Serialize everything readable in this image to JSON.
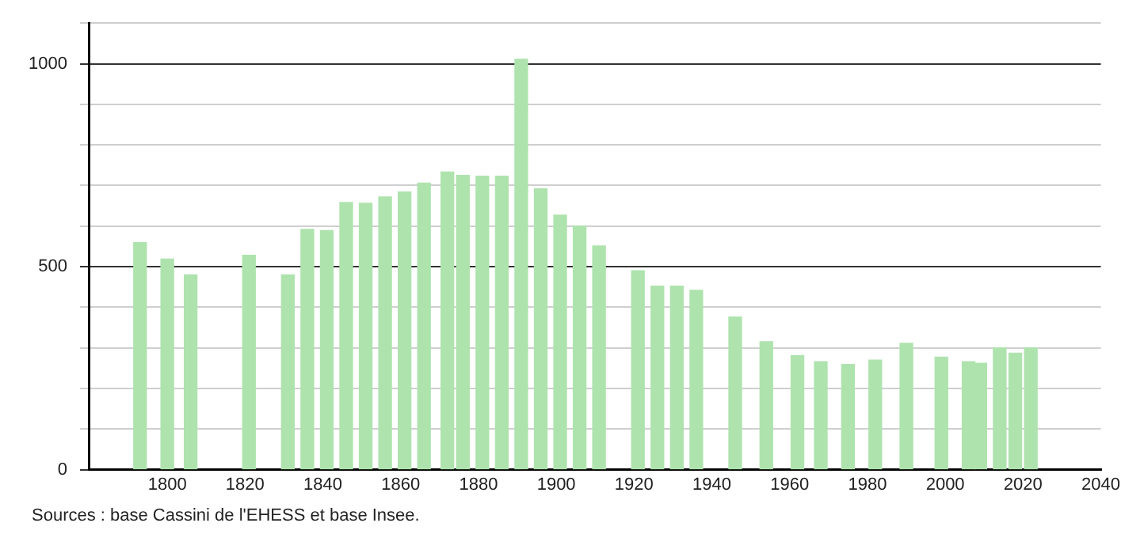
{
  "chart_data": {
    "type": "bar",
    "x": [
      1793,
      1800,
      1806,
      1821,
      1831,
      1836,
      1841,
      1846,
      1851,
      1856,
      1861,
      1866,
      1872,
      1876,
      1881,
      1886,
      1891,
      1896,
      1901,
      1906,
      1911,
      1921,
      1926,
      1931,
      1936,
      1946,
      1954,
      1962,
      1968,
      1975,
      1982,
      1990,
      1999,
      2006,
      2009,
      2014,
      2018,
      2022
    ],
    "values": [
      559,
      519,
      480,
      528,
      480,
      592,
      589,
      658,
      656,
      672,
      684,
      706,
      733,
      725,
      723,
      723,
      1011,
      692,
      627,
      600,
      551,
      490,
      452,
      452,
      442,
      376,
      315,
      281,
      266,
      259,
      270,
      311,
      277,
      266,
      262,
      300,
      287,
      300
    ],
    "color": "#aee3ae",
    "xlim": [
      1780,
      2040
    ],
    "xticks": [
      1800,
      1820,
      1840,
      1860,
      1880,
      1900,
      1920,
      1940,
      1960,
      1980,
      2000,
      2020,
      2040
    ],
    "ylim": [
      0,
      1100
    ],
    "yticks": [
      0,
      {
        "value": 100,
        "label": null
      },
      {
        "value": 200,
        "label": null
      },
      {
        "value": 300,
        "label": null
      },
      {
        "value": 400,
        "label": null
      },
      500,
      {
        "value": 600,
        "label": null
      },
      {
        "value": 700,
        "label": null
      },
      {
        "value": 800,
        "label": null
      },
      {
        "value": 900,
        "label": null
      },
      1000,
      {
        "value": 1100,
        "label": null
      }
    ],
    "grid": "y",
    "legend": false,
    "annotations": [
      "Sources : base Cassini de l'EHESS et base Insee."
    ]
  }
}
